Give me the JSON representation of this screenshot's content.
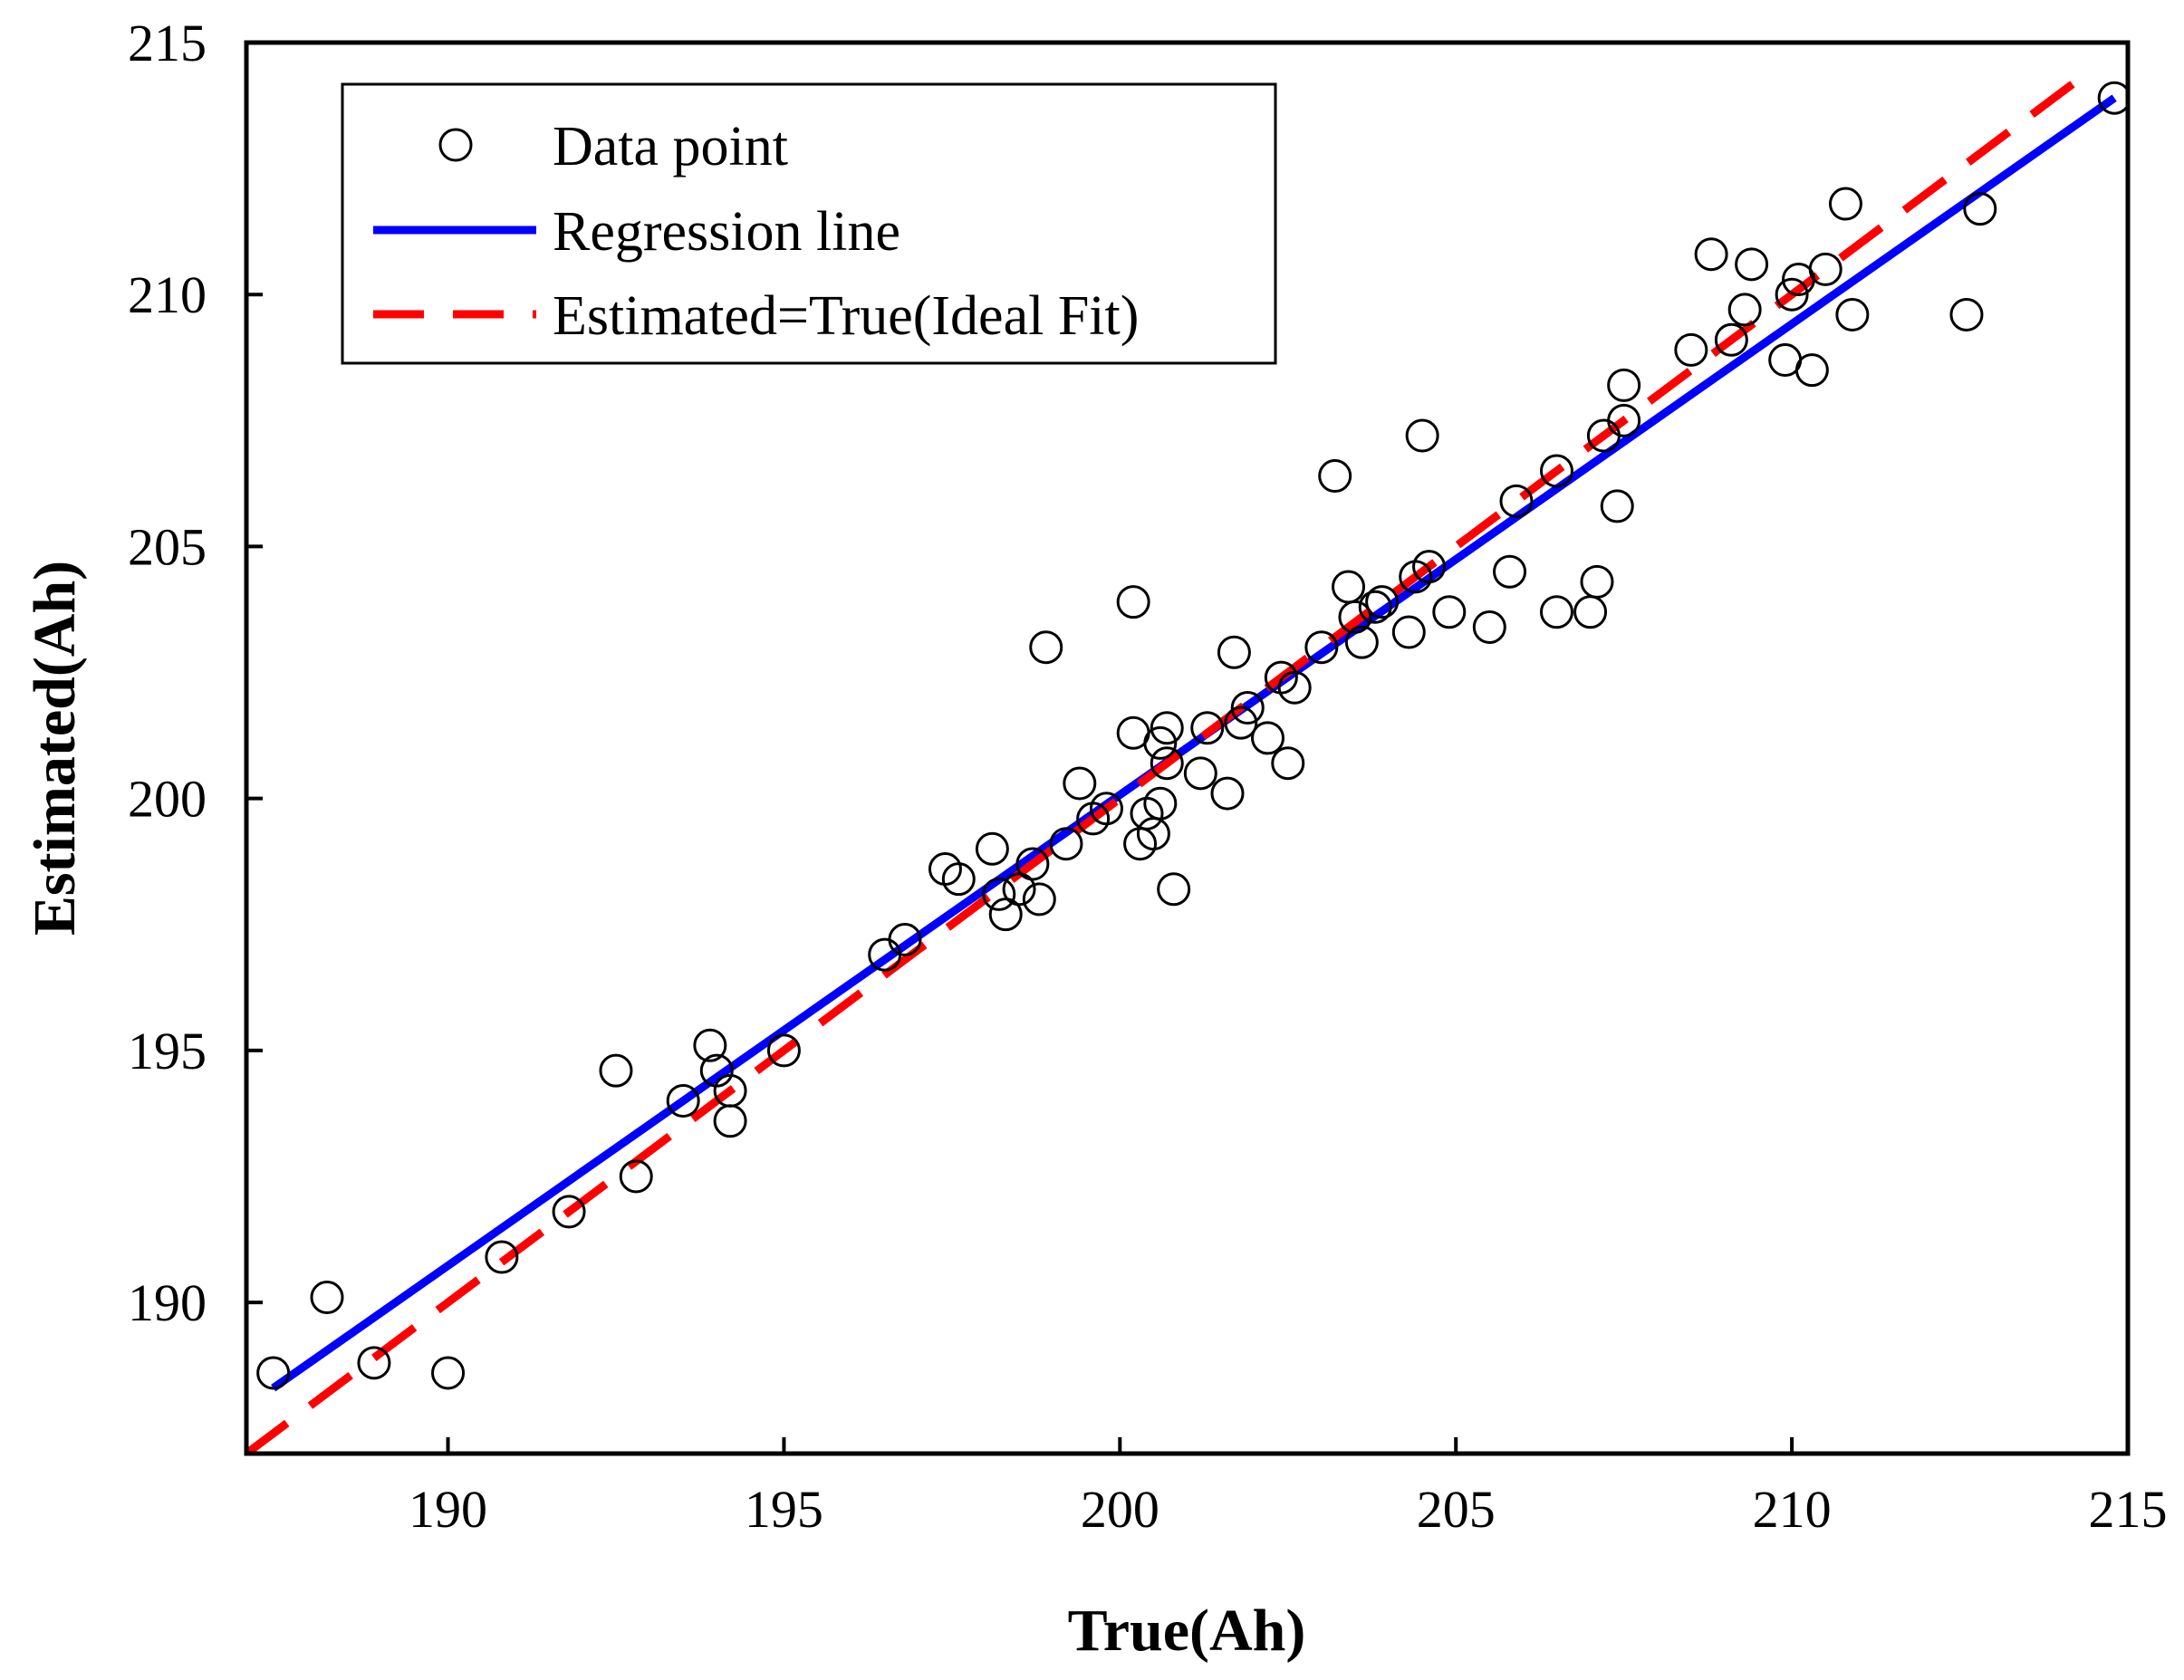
{
  "chart_data": {
    "type": "scatter",
    "title": "",
    "xlabel": "True(Ah)",
    "ylabel": "Estimated(Ah)",
    "xlim": [
      187,
      215
    ],
    "ylim": [
      187,
      215
    ],
    "xticks": [
      190,
      195,
      200,
      205,
      210,
      215
    ],
    "yticks": [
      190,
      195,
      200,
      205,
      210,
      215
    ],
    "grid": false,
    "legend_position": "top-left",
    "colors": {
      "points": "#000000",
      "regression": "#0000ff",
      "ideal": "#ff0000"
    },
    "series": [
      {
        "name": "Data point",
        "kind": "markers",
        "x": [
          187.4,
          188.2,
          188.9,
          190.0,
          190.8,
          191.8,
          192.5,
          192.8,
          193.5,
          193.9,
          194.0,
          194.2,
          194.2,
          195.0,
          196.5,
          196.8,
          197.4,
          197.6,
          198.1,
          198.2,
          198.3,
          198.5,
          198.7,
          198.8,
          198.9,
          199.2,
          199.4,
          199.6,
          199.8,
          200.2,
          200.2,
          200.3,
          200.4,
          200.5,
          200.6,
          200.6,
          200.7,
          200.7,
          200.8,
          201.2,
          201.3,
          201.6,
          201.7,
          201.8,
          201.9,
          202.2,
          202.4,
          202.5,
          202.6,
          203.0,
          203.2,
          203.4,
          203.5,
          203.6,
          203.8,
          203.9,
          204.3,
          204.4,
          204.5,
          204.6,
          204.9,
          205.5,
          205.8,
          205.9,
          206.5,
          206.5,
          207.0,
          207.1,
          207.2,
          207.4,
          207.5,
          207.5,
          208.5,
          208.8,
          209.1,
          209.3,
          209.4,
          209.9,
          210.0,
          210.1,
          210.3,
          210.5,
          210.8,
          210.9,
          212.6,
          212.8,
          214.8
        ],
        "y": [
          188.6,
          190.1,
          188.8,
          188.6,
          190.9,
          191.8,
          194.6,
          192.5,
          194.0,
          195.1,
          194.6,
          194.2,
          193.6,
          195.0,
          196.9,
          197.2,
          198.6,
          198.4,
          199.0,
          198.1,
          197.7,
          198.2,
          198.7,
          198.0,
          203.0,
          199.1,
          200.3,
          199.6,
          199.8,
          203.9,
          201.3,
          199.1,
          199.7,
          199.3,
          201.1,
          199.9,
          201.4,
          200.7,
          198.2,
          200.5,
          201.4,
          200.1,
          202.9,
          201.5,
          201.8,
          201.2,
          202.4,
          200.7,
          202.2,
          203.0,
          206.4,
          204.2,
          203.6,
          203.1,
          203.8,
          203.9,
          203.3,
          204.4,
          207.2,
          204.6,
          203.7,
          203.4,
          204.5,
          205.9,
          206.5,
          203.7,
          203.7,
          204.3,
          207.2,
          205.8,
          207.5,
          208.2,
          208.9,
          210.8,
          209.1,
          209.7,
          210.6,
          208.7,
          210.0,
          210.3,
          208.5,
          210.5,
          211.8,
          209.6,
          209.6,
          211.7,
          213.9
        ]
      },
      {
        "name": "Regression line",
        "kind": "line",
        "x": [
          187.4,
          214.8
        ],
        "y": [
          188.3,
          213.9
        ]
      },
      {
        "name": "Estimated=True(Ideal Fit)",
        "kind": "dashed-line",
        "x": [
          187.0,
          214.2
        ],
        "y": [
          187.0,
          214.2
        ]
      }
    ],
    "legend": [
      "Data point",
      "Regression line",
      "Estimated=True(Ideal Fit)"
    ]
  }
}
